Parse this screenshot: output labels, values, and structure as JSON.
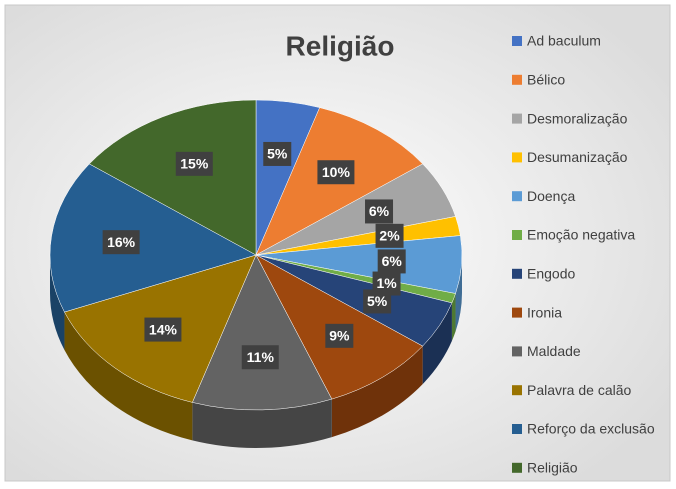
{
  "chart_data": {
    "type": "pie",
    "title": "Religião",
    "categories": [
      "Ad baculum",
      "Bélico",
      "Desmoralização",
      "Desumanização",
      "Doença",
      "Emoção negativa",
      "Engodo",
      "Ironia",
      "Maldade",
      "Palavra de calão",
      "Reforço da exclusão",
      "Religião"
    ],
    "values": [
      5,
      10,
      6,
      2,
      6,
      1,
      5,
      9,
      11,
      14,
      16,
      15
    ],
    "value_labels": [
      "5%",
      "10%",
      "6%",
      "2%",
      "6%",
      "1%",
      "5%",
      "9%",
      "11%",
      "14%",
      "16%",
      "15%"
    ],
    "colors": [
      "#4472c4",
      "#ed7d31",
      "#a5a5a5",
      "#ffc000",
      "#5b9bd5",
      "#70ad47",
      "#264478",
      "#9e480e",
      "#636363",
      "#997300",
      "#255e91",
      "#43682b"
    ],
    "legend": "right"
  }
}
